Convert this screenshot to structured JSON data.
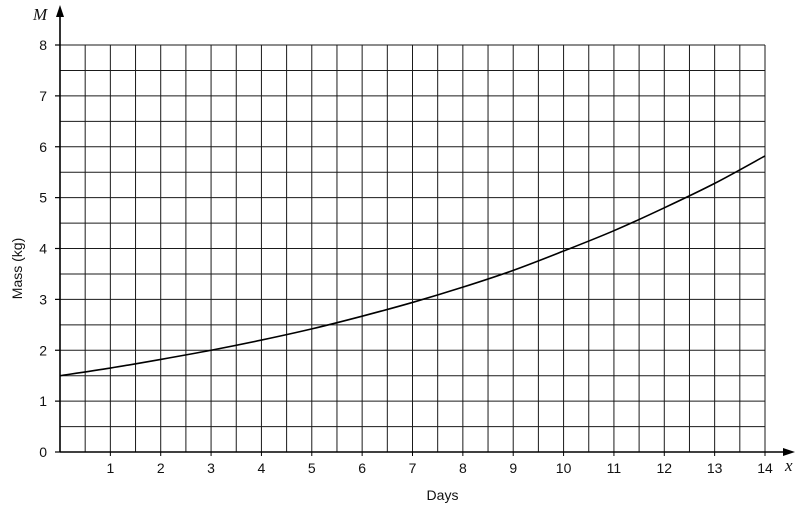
{
  "chart_data": {
    "type": "line",
    "title": "",
    "xlabel": "Days",
    "ylabel": "Mass (kg)",
    "x_axis_letter": "x",
    "y_axis_letter": "M",
    "xlim": [
      0,
      14
    ],
    "ylim": [
      0,
      8
    ],
    "x_ticks": [
      "1",
      "2",
      "3",
      "4",
      "5",
      "6",
      "7",
      "8",
      "9",
      "10",
      "11",
      "12",
      "13",
      "14"
    ],
    "y_ticks": [
      "0",
      "1",
      "2",
      "3",
      "4",
      "5",
      "6",
      "7",
      "8"
    ],
    "grid": true,
    "series": [
      {
        "x": [
          0,
          1,
          2,
          3,
          4,
          5,
          6,
          7,
          8,
          9,
          10,
          11,
          12,
          13,
          14
        ],
        "y": [
          1.5,
          1.65,
          1.82,
          2.0,
          2.2,
          2.42,
          2.67,
          2.94,
          3.24,
          3.57,
          3.95,
          4.35,
          4.8,
          5.28,
          5.82
        ]
      }
    ]
  }
}
